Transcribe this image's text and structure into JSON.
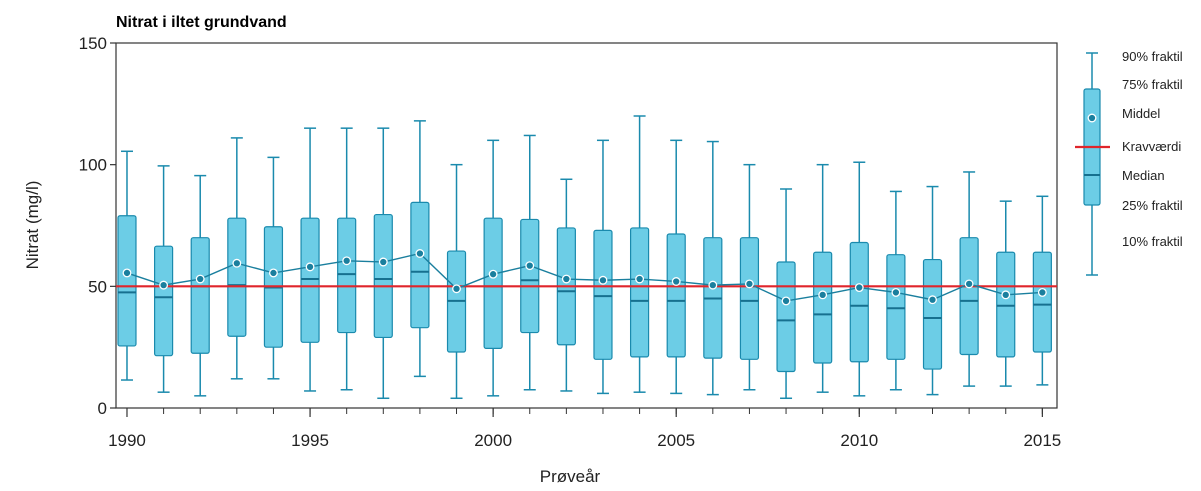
{
  "chart_data": {
    "type": "box",
    "title": "Nitrat i iltet grundvand",
    "xlabel": "Prøveår",
    "ylabel": "Nitrat (mg/l)",
    "ylim": [
      0,
      150
    ],
    "xlim": [
      1989.7,
      2015.4
    ],
    "yticks": [
      0,
      50,
      100,
      150
    ],
    "xticks": [
      1990,
      1995,
      2000,
      2005,
      2010,
      2015
    ],
    "threshold": {
      "label": "Kravværdi",
      "value": 50,
      "color": "#e0252b"
    },
    "colors": {
      "box_fill": "#6ccde6",
      "box_stroke": "#1a8aad",
      "median": "#16708f",
      "mean_line": "#1a7f9e"
    },
    "legend": {
      "p90": "90% fraktil",
      "p75": "75% fraktil",
      "mean": "Middel",
      "threshold": "Kravværdi",
      "median": "Median",
      "p25": "25% fraktil",
      "p10": "10% fraktil"
    },
    "series": [
      {
        "year": 1990,
        "p10": 11.5,
        "p25": 25.5,
        "median": 47.5,
        "p75": 79,
        "p90": 105.5,
        "mean": 55.5
      },
      {
        "year": 1991,
        "p10": 6.5,
        "p25": 21.5,
        "median": 45.5,
        "p75": 66.5,
        "p90": 99.5,
        "mean": 50.5
      },
      {
        "year": 1992,
        "p10": 5,
        "p25": 22.5,
        "median": 50,
        "p75": 70,
        "p90": 95.5,
        "mean": 53
      },
      {
        "year": 1993,
        "p10": 12,
        "p25": 29.5,
        "median": 50.5,
        "p75": 78,
        "p90": 111,
        "mean": 59.5
      },
      {
        "year": 1994,
        "p10": 12,
        "p25": 25,
        "median": 49.5,
        "p75": 74.5,
        "p90": 103,
        "mean": 55.5
      },
      {
        "year": 1995,
        "p10": 7,
        "p25": 27,
        "median": 53,
        "p75": 78,
        "p90": 115,
        "mean": 58
      },
      {
        "year": 1996,
        "p10": 7.5,
        "p25": 31,
        "median": 55,
        "p75": 78,
        "p90": 115,
        "mean": 60.5
      },
      {
        "year": 1997,
        "p10": 4,
        "p25": 29,
        "median": 53,
        "p75": 79.5,
        "p90": 115,
        "mean": 60
      },
      {
        "year": 1998,
        "p10": 13,
        "p25": 33,
        "median": 56,
        "p75": 84.5,
        "p90": 118,
        "mean": 63.5
      },
      {
        "year": 1999,
        "p10": 4,
        "p25": 23,
        "median": 44,
        "p75": 64.5,
        "p90": 100,
        "mean": 49
      },
      {
        "year": 2000,
        "p10": 5,
        "p25": 24.5,
        "median": 50,
        "p75": 78,
        "p90": 110,
        "mean": 55
      },
      {
        "year": 2001,
        "p10": 7.5,
        "p25": 31,
        "median": 52.5,
        "p75": 77.5,
        "p90": 112,
        "mean": 58.5
      },
      {
        "year": 2002,
        "p10": 7,
        "p25": 26,
        "median": 48,
        "p75": 74,
        "p90": 94,
        "mean": 53
      },
      {
        "year": 2003,
        "p10": 6,
        "p25": 20,
        "median": 46,
        "p75": 73,
        "p90": 110,
        "mean": 52.5
      },
      {
        "year": 2004,
        "p10": 6.5,
        "p25": 21,
        "median": 44,
        "p75": 74,
        "p90": 120,
        "mean": 53
      },
      {
        "year": 2005,
        "p10": 6,
        "p25": 21,
        "median": 44,
        "p75": 71.5,
        "p90": 110,
        "mean": 52
      },
      {
        "year": 2006,
        "p10": 5.5,
        "p25": 20.5,
        "median": 45,
        "p75": 70,
        "p90": 109.5,
        "mean": 50.5
      },
      {
        "year": 2007,
        "p10": 7.5,
        "p25": 20,
        "median": 44,
        "p75": 70,
        "p90": 100,
        "mean": 51
      },
      {
        "year": 2008,
        "p10": 4,
        "p25": 15,
        "median": 36,
        "p75": 60,
        "p90": 90,
        "mean": 44
      },
      {
        "year": 2009,
        "p10": 6.5,
        "p25": 18.5,
        "median": 38.5,
        "p75": 64,
        "p90": 100,
        "mean": 46.5
      },
      {
        "year": 2010,
        "p10": 5,
        "p25": 19,
        "median": 42,
        "p75": 68,
        "p90": 101,
        "mean": 49.5
      },
      {
        "year": 2011,
        "p10": 7.5,
        "p25": 20,
        "median": 41,
        "p75": 63,
        "p90": 89,
        "mean": 47.5
      },
      {
        "year": 2012,
        "p10": 5.5,
        "p25": 16,
        "median": 37,
        "p75": 61,
        "p90": 91,
        "mean": 44.5
      },
      {
        "year": 2013,
        "p10": 9,
        "p25": 22,
        "median": 44,
        "p75": 70,
        "p90": 97,
        "mean": 51
      },
      {
        "year": 2014,
        "p10": 9,
        "p25": 21,
        "median": 42,
        "p75": 64,
        "p90": 85,
        "mean": 46.5
      },
      {
        "year": 2015,
        "p10": 9.5,
        "p25": 23,
        "median": 42.5,
        "p75": 64,
        "p90": 87,
        "mean": 47.5
      }
    ]
  }
}
